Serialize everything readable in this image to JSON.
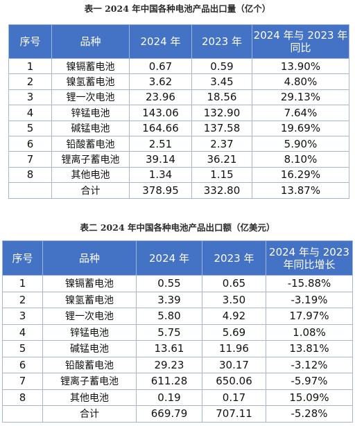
{
  "table1": {
    "title": "表一  2024 年中国各种电池产品出口量（亿个）",
    "headers": [
      "序号",
      "品种",
      "2024 年",
      "2023 年",
      "2024 年与 2023 年同比"
    ],
    "rows": [
      {
        "no": "1",
        "name": "镍镉蓄电池",
        "y2024": "0.67",
        "y2023": "0.59",
        "yoy": "13.90%"
      },
      {
        "no": "2",
        "name": "镍氢蓄电池",
        "y2024": "3.62",
        "y2023": "3.45",
        "yoy": "4.80%"
      },
      {
        "no": "3",
        "name": "锂一次电池",
        "y2024": "23.96",
        "y2023": "18.56",
        "yoy": "29.13%"
      },
      {
        "no": "4",
        "name": "锌锰电池",
        "y2024": "143.06",
        "y2023": "132.90",
        "yoy": "7.64%"
      },
      {
        "no": "5",
        "name": "碱锰电池",
        "y2024": "164.66",
        "y2023": "137.58",
        "yoy": "19.69%"
      },
      {
        "no": "6",
        "name": "铅酸蓄电池",
        "y2024": "2.51",
        "y2023": "2.37",
        "yoy": "5.90%"
      },
      {
        "no": "7",
        "name": "锂离子蓄电池",
        "y2024": "39.14",
        "y2023": "36.21",
        "yoy": "8.10%"
      },
      {
        "no": "8",
        "name": "其他电池",
        "y2024": "1.34",
        "y2023": "1.15",
        "yoy": "16.29%"
      }
    ],
    "total": {
      "label": "合计",
      "y2024": "378.95",
      "y2023": "332.80",
      "yoy": "13.87%"
    }
  },
  "table2": {
    "title": "表二  2024 年中国各种电池产品出口额（亿美元）",
    "headers": [
      "序号",
      "品种",
      "2024 年",
      "2023 年",
      "2024 年与 2023 年同比增长"
    ],
    "rows": [
      {
        "no": "1",
        "name": "镍镉蓄电池",
        "y2024": "0.55",
        "y2023": "0.65",
        "yoy": "-15.88%"
      },
      {
        "no": "2",
        "name": "镍氢蓄电池",
        "y2024": "3.39",
        "y2023": "3.50",
        "yoy": "-3.19%"
      },
      {
        "no": "3",
        "name": "锂一次电池",
        "y2024": "5.80",
        "y2023": "4.92",
        "yoy": "17.97%"
      },
      {
        "no": "4",
        "name": "锌锰电池",
        "y2024": "5.75",
        "y2023": "5.69",
        "yoy": "1.08%"
      },
      {
        "no": "5",
        "name": "碱锰电池",
        "y2024": "13.61",
        "y2023": "11.96",
        "yoy": "13.81%"
      },
      {
        "no": "6",
        "name": "铅酸蓄电池",
        "y2024": "29.23",
        "y2023": "30.17",
        "yoy": "-3.12%"
      },
      {
        "no": "7",
        "name": "锂离子蓄电池",
        "y2024": "611.28",
        "y2023": "650.06",
        "yoy": "-5.97%"
      },
      {
        "no": "8",
        "name": "其他电池",
        "y2024": "0.19",
        "y2023": "0.17",
        "yoy": "15.09%"
      }
    ],
    "total": {
      "label": "合计",
      "y2024": "669.79",
      "y2023": "707.11",
      "yoy": "-5.28%"
    }
  },
  "colors": {
    "header_bg": "#4472c4",
    "header_text": "#ffffff",
    "border": "#a9b5cc"
  }
}
